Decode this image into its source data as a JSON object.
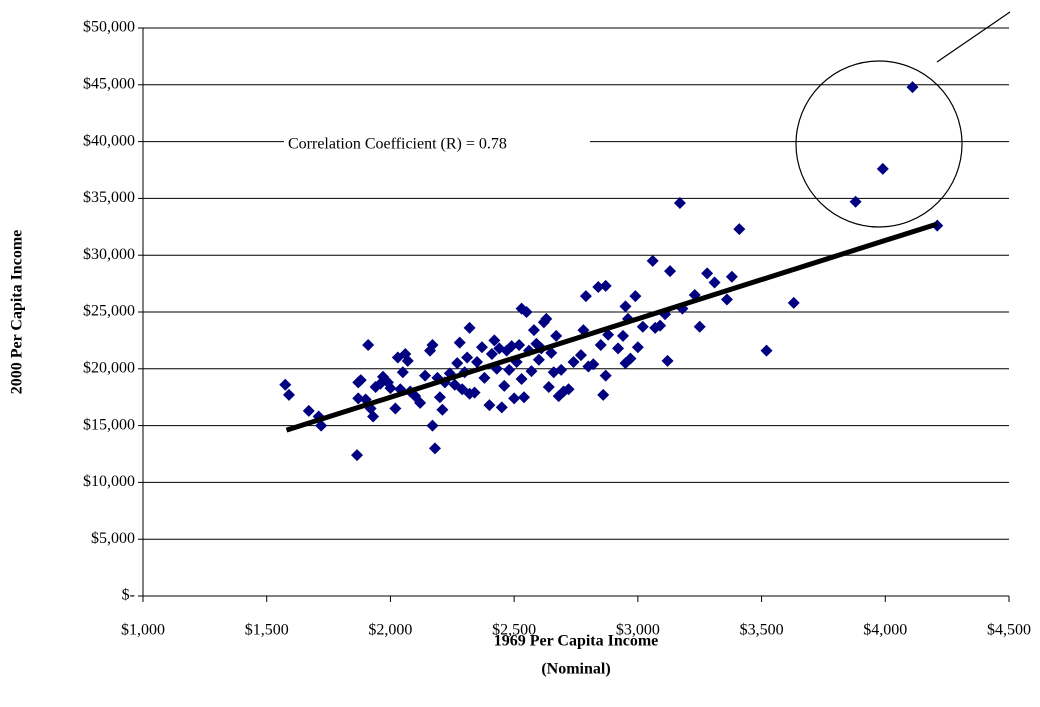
{
  "chart_data": {
    "type": "scatter",
    "annotation": "Correlation Coefficient (R) = 0.78",
    "x_label": "1969 Per Capita Income",
    "x_label_note": "(Nominal)",
    "y_label": "2000 Per Capita Income",
    "color": "#000080",
    "grid": true,
    "xlim": [
      1000,
      4500
    ],
    "ylim": [
      0,
      50000
    ],
    "xticks": [
      {
        "value": 1000,
        "label": "$1,000"
      },
      {
        "value": 1500,
        "label": "$1,500"
      },
      {
        "value": 2000,
        "label": "$2,000"
      },
      {
        "value": 2500,
        "label": "$2,500"
      },
      {
        "value": 3000,
        "label": "$3,000"
      },
      {
        "value": 3500,
        "label": "$3,500"
      },
      {
        "value": 4000,
        "label": "$4,000"
      },
      {
        "value": 4500,
        "label": "$4,500"
      }
    ],
    "yticks": [
      {
        "value": 0,
        "label": "$-"
      },
      {
        "value": 5000,
        "label": "$5,000"
      },
      {
        "value": 10000,
        "label": "$10,000"
      },
      {
        "value": 15000,
        "label": "$15,000"
      },
      {
        "value": 20000,
        "label": "$20,000"
      },
      {
        "value": 25000,
        "label": "$25,000"
      },
      {
        "value": 30000,
        "label": "$30,000"
      },
      {
        "value": 35000,
        "label": "$35,000"
      },
      {
        "value": 40000,
        "label": "$40,000"
      },
      {
        "value": 45000,
        "label": "$45,000"
      },
      {
        "value": 50000,
        "label": "$50,000"
      }
    ],
    "x": [
      1575,
      1590,
      1670,
      1710,
      1720,
      1865,
      1870,
      1880,
      1870,
      1900,
      1910,
      1920,
      1930,
      1940,
      1960,
      1970,
      1990,
      2000,
      2020,
      2030,
      2040,
      2050,
      2060,
      2070,
      2080,
      2100,
      2120,
      2140,
      2160,
      2170,
      2170,
      2180,
      2190,
      2200,
      2210,
      2220,
      2240,
      2260,
      2270,
      2280,
      2290,
      2300,
      2310,
      2320,
      2320,
      2340,
      2350,
      2370,
      2380,
      2400,
      2410,
      2420,
      2430,
      2440,
      2450,
      2460,
      2470,
      2480,
      2490,
      2500,
      2510,
      2520,
      2530,
      2530,
      2540,
      2550,
      2560,
      2570,
      2580,
      2590,
      2600,
      2610,
      2620,
      2630,
      2640,
      2650,
      2660,
      2670,
      2680,
      2690,
      2700,
      2720,
      2740,
      2770,
      2780,
      2790,
      2800,
      2820,
      2840,
      2850,
      2860,
      2870,
      2870,
      2880,
      2920,
      2940,
      2950,
      2950,
      2960,
      2970,
      2990,
      3000,
      3020,
      3060,
      3070,
      3090,
      3110,
      3120,
      3130,
      3170,
      3180,
      3230,
      3250,
      3280,
      3310,
      3360,
      3380,
      3410,
      3520,
      3630,
      3880,
      3990,
      4110,
      4210
    ],
    "values": [
      18600,
      17700,
      16300,
      15800,
      15000,
      12400,
      18800,
      19000,
      17400,
      17300,
      22100,
      16500,
      15800,
      18400,
      18700,
      19300,
      18800,
      18300,
      16500,
      21000,
      18200,
      19700,
      21300,
      20700,
      18000,
      17600,
      17000,
      19400,
      21600,
      22100,
      15000,
      13000,
      19200,
      17500,
      16400,
      18800,
      19600,
      18600,
      20500,
      22300,
      18200,
      19700,
      21000,
      23600,
      17800,
      17900,
      20600,
      21900,
      19200,
      16800,
      21300,
      22500,
      20000,
      21800,
      16600,
      18500,
      21600,
      19900,
      22000,
      17400,
      20600,
      22100,
      25300,
      19100,
      17500,
      25000,
      21600,
      19800,
      23400,
      22200,
      20800,
      21800,
      24100,
      24400,
      18400,
      21400,
      19700,
      22900,
      17600,
      19900,
      18000,
      18200,
      20600,
      21200,
      23400,
      26400,
      20200,
      20400,
      27200,
      22100,
      17700,
      27300,
      19400,
      23000,
      21800,
      22900,
      25500,
      20500,
      24400,
      20900,
      26400,
      21900,
      23700,
      29500,
      23600,
      23800,
      24800,
      20700,
      28600,
      34600,
      25300,
      26500,
      23700,
      28400,
      27600,
      26100,
      28100,
      32300,
      21600,
      25800,
      34700,
      37600,
      44800,
      32600
    ],
    "trendline": {
      "color": "#000000",
      "x": [
        1580,
        4210
      ],
      "y": [
        14600,
        32750
      ]
    }
  }
}
